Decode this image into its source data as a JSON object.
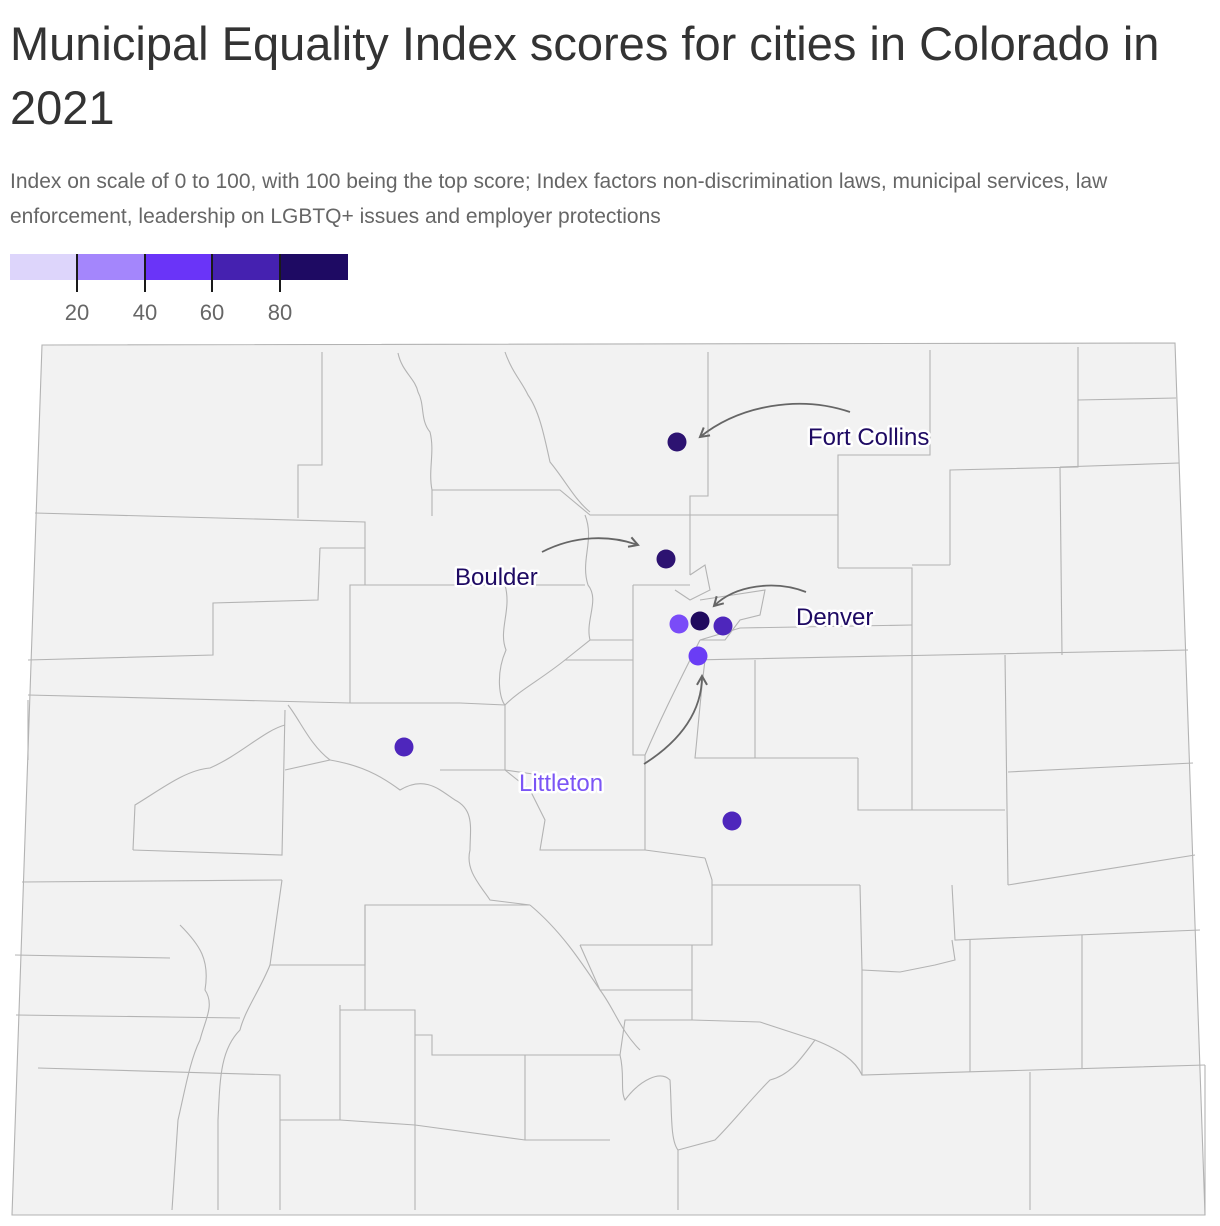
{
  "title": "Municipal Equality Index scores for cities in Colorado in 2021",
  "subtitle": "Index on scale of 0 to 100, with 100 being the top score; Index factors non-discrimination laws, municipal services, law enforcement, leadership on LGBTQ+ issues and employer protections",
  "legend": {
    "colors": [
      "#ddd5fb",
      "#a486fc",
      "#6a34f8",
      "#4521b0",
      "#1e0a63"
    ],
    "ticks": [
      "20",
      "40",
      "60",
      "80"
    ]
  },
  "map": {
    "region": "Colorado",
    "background_color": "#f2f2f2",
    "labels": {
      "fort_collins": {
        "text": "Fort Collins",
        "color": "#1e0a63"
      },
      "boulder": {
        "text": "Boulder",
        "color": "#1e0a63"
      },
      "denver": {
        "text": "Denver",
        "color": "#1e0a63"
      },
      "littleton": {
        "text": "Littleton",
        "color": "#7b55f5"
      }
    },
    "markers": [
      {
        "id": "fort-collins",
        "color": "#2d1371"
      },
      {
        "id": "boulder",
        "color": "#2d1371"
      },
      {
        "id": "denver",
        "color": "#200a5e"
      },
      {
        "id": "aurora",
        "color": "#4e26bc"
      },
      {
        "id": "lakewood",
        "color": "#7a4cf8"
      },
      {
        "id": "littleton",
        "color": "#6a3df5"
      },
      {
        "id": "glenwood-springs",
        "color": "#4e26bc"
      },
      {
        "id": "colorado-springs",
        "color": "#4e26bc"
      }
    ]
  }
}
